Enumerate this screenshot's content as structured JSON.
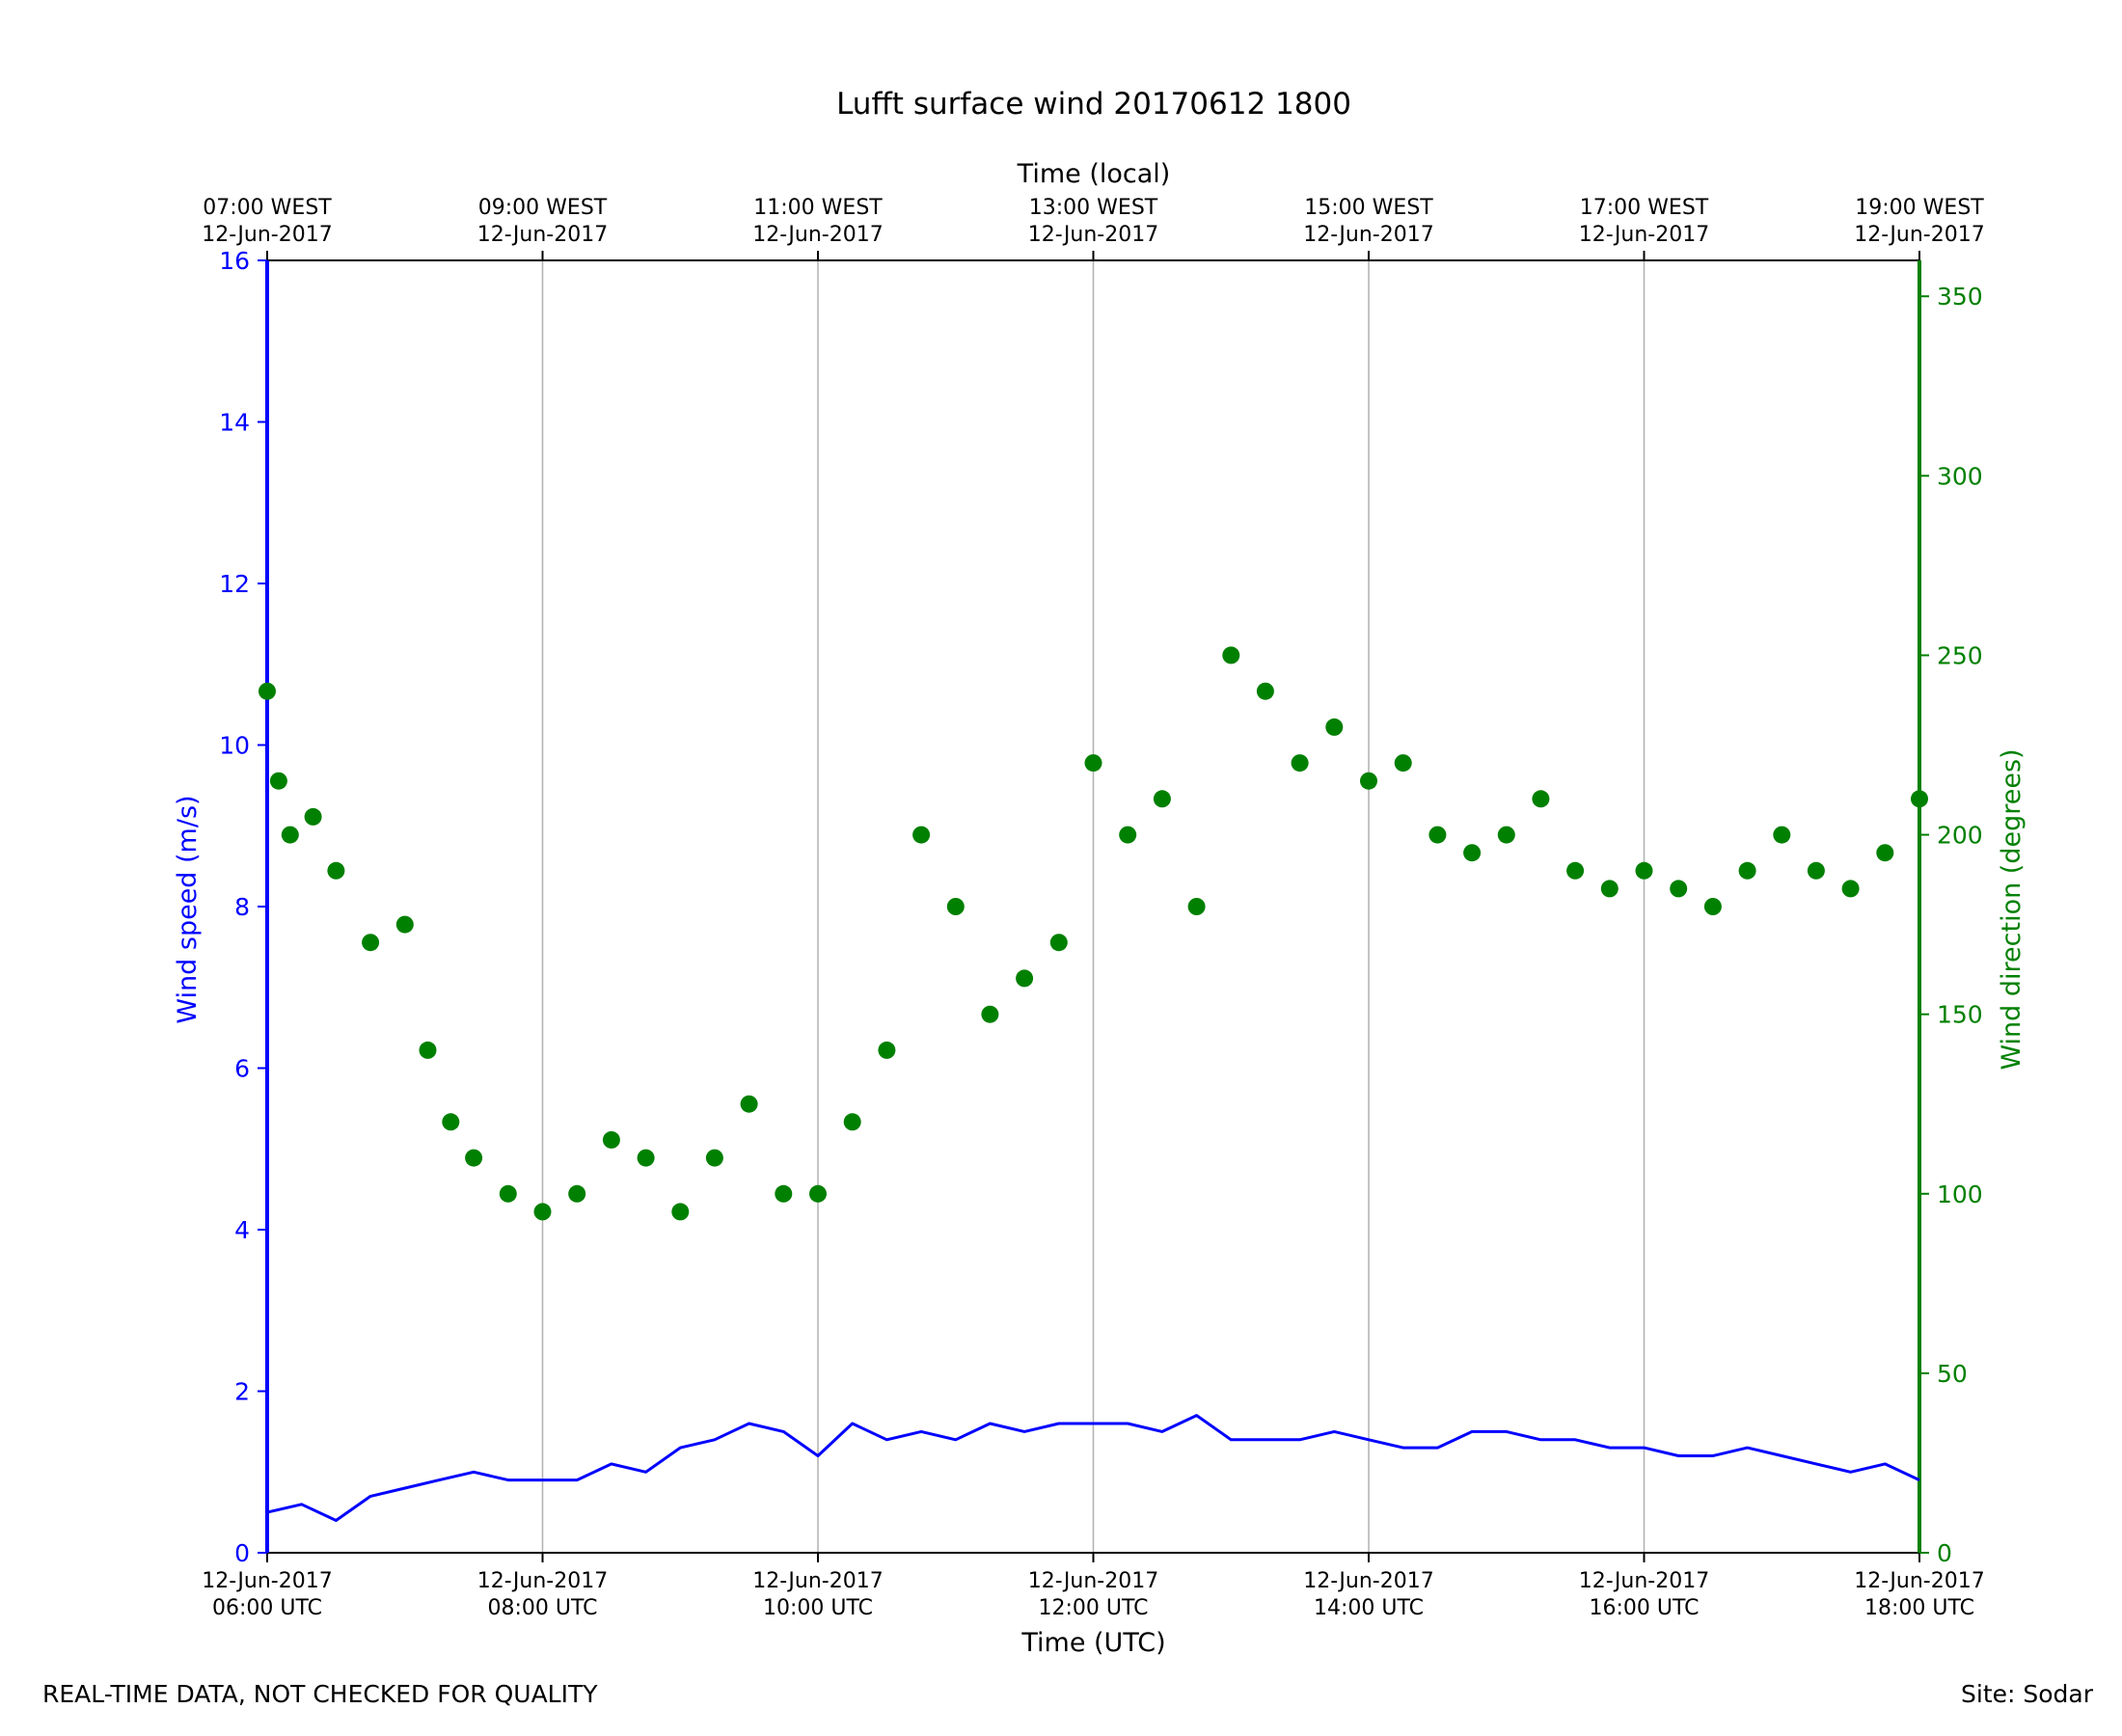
{
  "footer": {
    "left": "REAL-TIME DATA, NOT CHECKED FOR QUALITY",
    "right": "Site: Sodar"
  },
  "colors": {
    "speed": "#0000ff",
    "direction": "#008000",
    "grid": "#b0b0b0",
    "axis": "#000000"
  },
  "chart_data": {
    "type": "line",
    "title": "Lufft surface wind 20170612 1800",
    "xlabel": "Time (UTC)",
    "x2label": "Time (local)",
    "ylabel": "Wind speed (m/s)",
    "y2label": "Wind direction (degrees)",
    "xlim": [
      "2017-06-12T06:00",
      "2017-06-12T18:00"
    ],
    "ylim": [
      0,
      16
    ],
    "y2lim": [
      0,
      360
    ],
    "yticks": [
      0,
      2,
      4,
      6,
      8,
      10,
      12,
      14,
      16
    ],
    "y2ticks": [
      0,
      50,
      100,
      150,
      200,
      250,
      300,
      350
    ],
    "grid": "vertical at x ticks",
    "xticks": [
      {
        "time": "2017-06-12T06:00",
        "line1": "12-Jun-2017",
        "line2": "06:00 UTC"
      },
      {
        "time": "2017-06-12T08:00",
        "line1": "12-Jun-2017",
        "line2": "08:00 UTC"
      },
      {
        "time": "2017-06-12T10:00",
        "line1": "12-Jun-2017",
        "line2": "10:00 UTC"
      },
      {
        "time": "2017-06-12T12:00",
        "line1": "12-Jun-2017",
        "line2": "12:00 UTC"
      },
      {
        "time": "2017-06-12T14:00",
        "line1": "12-Jun-2017",
        "line2": "14:00 UTC"
      },
      {
        "time": "2017-06-12T16:00",
        "line1": "12-Jun-2017",
        "line2": "16:00 UTC"
      },
      {
        "time": "2017-06-12T18:00",
        "line1": "12-Jun-2017",
        "line2": "18:00 UTC"
      }
    ],
    "x2ticks": [
      {
        "time": "2017-06-12T06:00",
        "line1": "07:00 WEST",
        "line2": "12-Jun-2017"
      },
      {
        "time": "2017-06-12T08:00",
        "line1": "09:00 WEST",
        "line2": "12-Jun-2017"
      },
      {
        "time": "2017-06-12T10:00",
        "line1": "11:00 WEST",
        "line2": "12-Jun-2017"
      },
      {
        "time": "2017-06-12T12:00",
        "line1": "13:00 WEST",
        "line2": "12-Jun-2017"
      },
      {
        "time": "2017-06-12T14:00",
        "line1": "15:00 WEST",
        "line2": "12-Jun-2017"
      },
      {
        "time": "2017-06-12T16:00",
        "line1": "17:00 WEST",
        "line2": "12-Jun-2017"
      },
      {
        "time": "2017-06-12T18:00",
        "line1": "19:00 WEST",
        "line2": "12-Jun-2017"
      }
    ],
    "series": [
      {
        "axis": "left",
        "style": "line",
        "x": [
          "06:00",
          "06:15",
          "06:30",
          "06:45",
          "07:00",
          "07:15",
          "07:30",
          "07:45",
          "08:00",
          "08:15",
          "08:30",
          "08:45",
          "09:00",
          "09:15",
          "09:30",
          "09:45",
          "10:00",
          "10:15",
          "10:30",
          "10:45",
          "11:00",
          "11:15",
          "11:30",
          "11:45",
          "12:00",
          "12:15",
          "12:30",
          "12:45",
          "13:00",
          "13:15",
          "13:30",
          "13:45",
          "14:00",
          "14:15",
          "14:30",
          "14:45",
          "15:00",
          "15:15",
          "15:30",
          "15:45",
          "16:00",
          "16:15",
          "16:30",
          "16:45",
          "17:00",
          "17:15",
          "17:30",
          "17:45",
          "18:00"
        ],
        "values": [
          0.5,
          0.6,
          0.4,
          0.7,
          0.8,
          0.9,
          1.0,
          0.9,
          0.9,
          0.9,
          1.1,
          1.0,
          1.3,
          1.4,
          1.6,
          1.5,
          1.2,
          1.6,
          1.4,
          1.5,
          1.4,
          1.6,
          1.5,
          1.6,
          1.6,
          1.6,
          1.5,
          1.7,
          1.4,
          1.4,
          1.4,
          1.5,
          1.4,
          1.3,
          1.3,
          1.5,
          1.5,
          1.4,
          1.4,
          1.3,
          1.3,
          1.2,
          1.2,
          1.3,
          1.2,
          1.1,
          1.0,
          1.1,
          0.9
        ]
      },
      {
        "axis": "right",
        "style": "markers",
        "x": [
          "06:00",
          "06:05",
          "06:10",
          "06:20",
          "06:30",
          "06:45",
          "07:00",
          "07:10",
          "07:20",
          "07:30",
          "07:45",
          "08:00",
          "08:15",
          "08:30",
          "08:45",
          "09:00",
          "09:15",
          "09:30",
          "09:45",
          "10:00",
          "10:15",
          "10:30",
          "10:45",
          "11:00",
          "11:15",
          "11:30",
          "11:45",
          "12:00",
          "12:15",
          "12:30",
          "12:45",
          "13:00",
          "13:15",
          "13:30",
          "13:45",
          "14:00",
          "14:15",
          "14:30",
          "14:45",
          "15:00",
          "15:15",
          "15:30",
          "15:45",
          "16:00",
          "16:15",
          "16:30",
          "16:45",
          "17:00",
          "17:15",
          "17:30",
          "17:45",
          "18:00"
        ],
        "values": [
          240,
          215,
          200,
          205,
          190,
          170,
          175,
          140,
          120,
          110,
          100,
          95,
          100,
          115,
          110,
          95,
          110,
          125,
          100,
          100,
          120,
          140,
          200,
          180,
          150,
          160,
          170,
          220,
          200,
          210,
          180,
          250,
          240,
          220,
          230,
          215,
          220,
          200,
          195,
          200,
          210,
          190,
          185,
          190,
          185,
          180,
          190,
          200,
          190,
          185,
          195,
          210
        ]
      }
    ]
  }
}
